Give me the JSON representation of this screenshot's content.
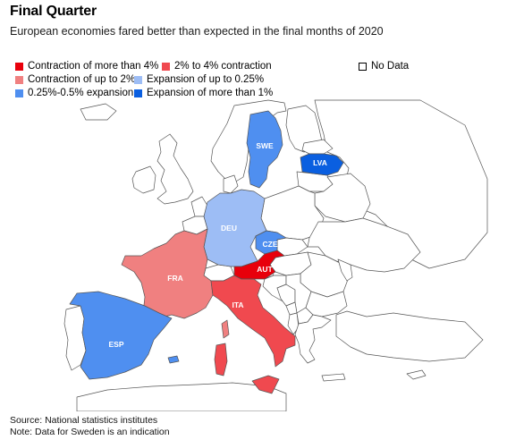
{
  "title": "Final Quarter",
  "subtitle": "European economies fared better than expected in the final months of 2020",
  "legend": {
    "contraction_4": {
      "label": "Contraction of more than 4%",
      "color": "#e8000b"
    },
    "contraction_2_4": {
      "label": "2% to 4% contraction",
      "color": "#f0494f"
    },
    "contraction_2": {
      "label": "Contraction of up to 2%",
      "color": "#f08080"
    },
    "expansion_025": {
      "label": "Expansion of up to 0.25%",
      "color": "#9dbdf5"
    },
    "expansion_025_05": {
      "label": "0.25%-0.5% expansion",
      "color": "#4f8ff0"
    },
    "expansion_1": {
      "label": "Expansion of more than 1%",
      "color": "#0a5fe0"
    },
    "no_data": {
      "label": "No Data",
      "color": "#ffffff"
    }
  },
  "countries": {
    "swe": {
      "label": "SWE",
      "category": "expansion_025_05"
    },
    "lva": {
      "label": "LVA",
      "category": "expansion_1"
    },
    "deu": {
      "label": "DEU",
      "category": "expansion_025"
    },
    "cze": {
      "label": "CZE",
      "category": "expansion_025_05"
    },
    "aut": {
      "label": "AUT",
      "category": "contraction_4"
    },
    "fra": {
      "label": "FRA",
      "category": "contraction_2"
    },
    "ita": {
      "label": "ITA",
      "category": "contraction_2_4"
    },
    "esp": {
      "label": "ESP",
      "category": "expansion_025_05"
    }
  },
  "footer": {
    "source": "Source: National statistics institutes",
    "note": "Note: Data for Sweden is an indication"
  }
}
